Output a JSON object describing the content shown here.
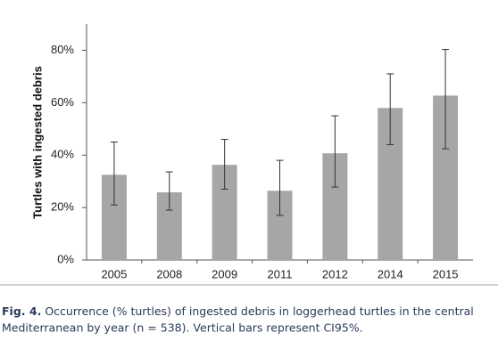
{
  "chart_data": {
    "type": "bar",
    "y_label": "Turtles with ingested debris",
    "categories": [
      "2005",
      "2008",
      "2009",
      "2011",
      "2012",
      "2014",
      "2015"
    ],
    "values": [
      32.5,
      25.8,
      36.3,
      26.4,
      40.7,
      58,
      62.7
    ],
    "ci_low": [
      21,
      19,
      27,
      17,
      27.8,
      44,
      42.4
    ],
    "ci_high": [
      45,
      33.6,
      46,
      38,
      55,
      71,
      80.3
    ],
    "color": "#a6a6a6",
    "ylim": [
      0,
      90
    ],
    "yticks": [
      {
        "value": 0,
        "label": "0%"
      },
      {
        "value": 20,
        "label": "20%"
      },
      {
        "value": 40,
        "label": "40%"
      },
      {
        "value": 60,
        "label": "60%"
      },
      {
        "value": 80,
        "label": "80%"
      }
    ]
  },
  "caption": {
    "label": "Fig. 4.",
    "lines": [
      "Occurrence (% turtles) of ingested debris in loggerhead turtles in the central",
      "Mediterranean by year (n = 538). Vertical bars represent CI95%."
    ]
  }
}
